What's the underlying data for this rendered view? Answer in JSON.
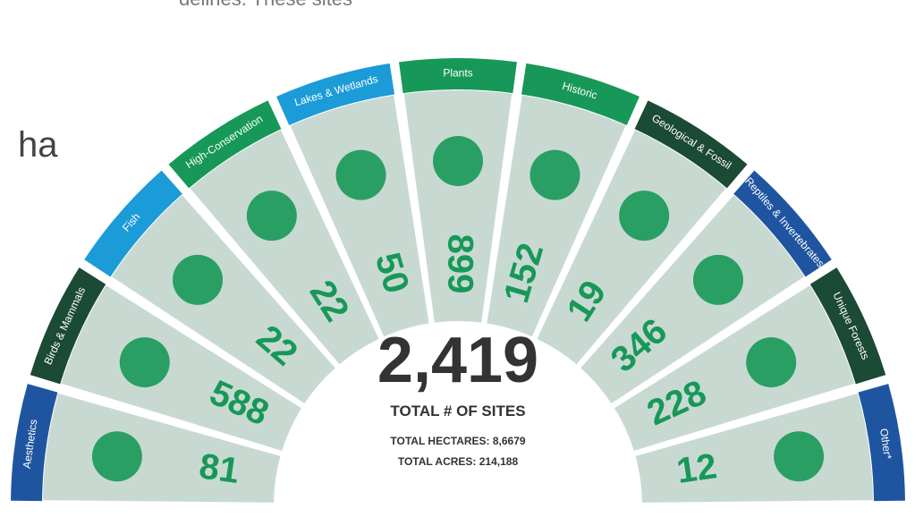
{
  "fragments": {
    "top": "delines. These sites",
    "left": "ha"
  },
  "segments": [
    {
      "label": "Aesthetics",
      "count": "81",
      "color": "#1f55a0"
    },
    {
      "label": "Birds & Mammals",
      "count": "588",
      "color": "#1b4a35"
    },
    {
      "label": "Fish",
      "count": "22",
      "color": "#1b9bd7"
    },
    {
      "label": "High-Conservation",
      "count": "22",
      "color": "#179858"
    },
    {
      "label": "Lakes & Wetlands",
      "count": "50",
      "color": "#1b9bd7"
    },
    {
      "label": "Plants",
      "count": "899",
      "color": "#179858"
    },
    {
      "label": "Historic",
      "count": "152",
      "color": "#179858"
    },
    {
      "label": "Geological & Fossil",
      "count": "19",
      "color": "#1b4a35"
    },
    {
      "label": "Reptiles & Invertebrates",
      "count": "346",
      "color": "#1f55a0"
    },
    {
      "label": "Unique Forests",
      "count": "228",
      "color": "#1b4a35"
    },
    {
      "label": "Other*",
      "count": "12",
      "color": "#1f55a0"
    }
  ],
  "center": {
    "total": "2,419",
    "caption": "TOTAL # OF SITES",
    "hectares": "TOTAL HECTARES: 8,6679",
    "acres": "TOTAL ACRES: 214,188"
  }
}
